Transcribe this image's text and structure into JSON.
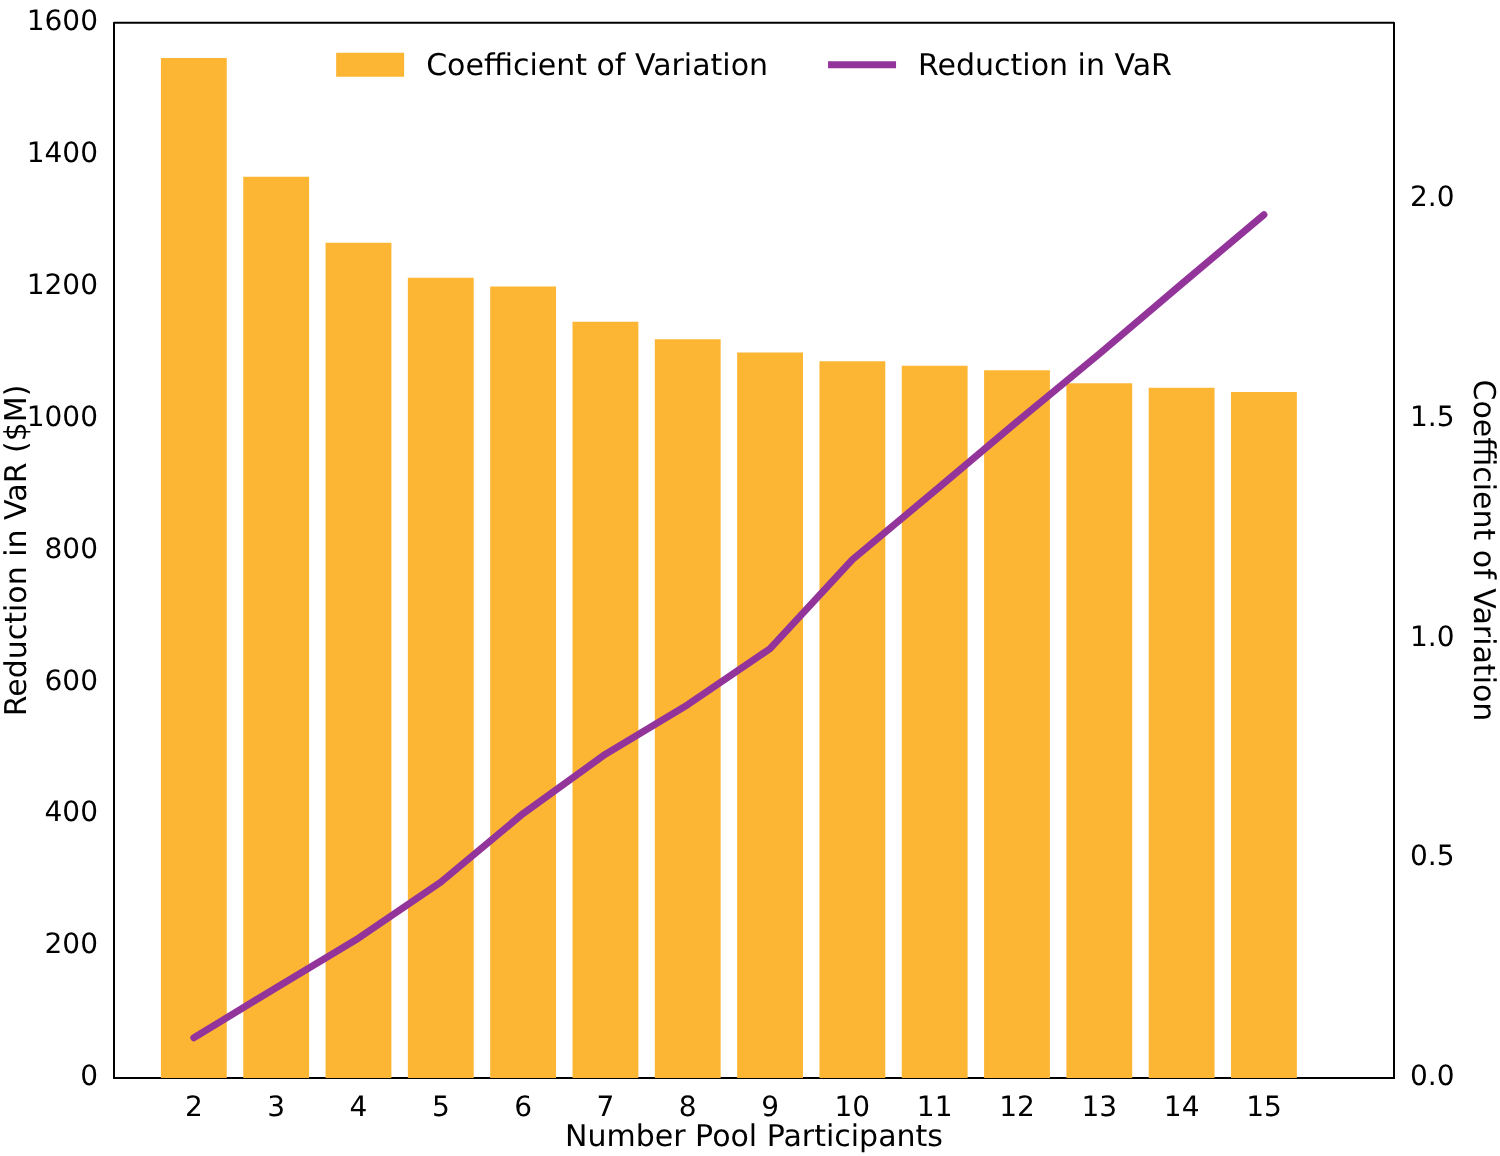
{
  "chart_data": {
    "type": "bar",
    "xlabel": "Number Pool Participants",
    "ylabel": "Reduction in VaR ($M)",
    "y2label": "Coefficient of Variation",
    "x": [
      2,
      3,
      4,
      5,
      6,
      7,
      8,
      9,
      10,
      11,
      12,
      13,
      14,
      15
    ],
    "xlim": [
      1.03,
      16.58
    ],
    "xticks": [
      2,
      3,
      4,
      5,
      6,
      7,
      8,
      9,
      10,
      11,
      12,
      13,
      14,
      15
    ],
    "ylim": [
      0,
      1600
    ],
    "yticks": [
      0,
      200,
      400,
      600,
      800,
      1000,
      1200,
      1400,
      1600
    ],
    "y2lim": [
      0,
      2.4
    ],
    "y2ticks": [
      {
        "value": 0,
        "label": "0.0"
      },
      {
        "value": 0.5,
        "label": "0.5"
      },
      {
        "value": 1,
        "label": "1.0"
      },
      {
        "value": 1.5,
        "label": "1.5"
      },
      {
        "value": 2,
        "label": "2.0"
      }
    ],
    "series": [
      {
        "name": "Coefficient of Variation",
        "axis": "y2",
        "color": "#fdb634",
        "values": [
          2.32,
          2.05,
          1.9,
          1.82,
          1.8,
          1.72,
          1.68,
          1.65,
          1.63,
          1.62,
          1.61,
          1.58,
          1.57,
          1.56
        ]
      },
      {
        "name": "Reduction in VaR",
        "type": "line",
        "axis": "y",
        "color": "#93349a",
        "values": [
          61,
          137,
          212,
          297,
          401,
          491,
          566,
          651,
          786,
          890,
          995,
          1098,
          1204,
          1309
        ]
      }
    ],
    "grid": false,
    "legend": "top",
    "marker": "none",
    "line_style": "solid"
  }
}
